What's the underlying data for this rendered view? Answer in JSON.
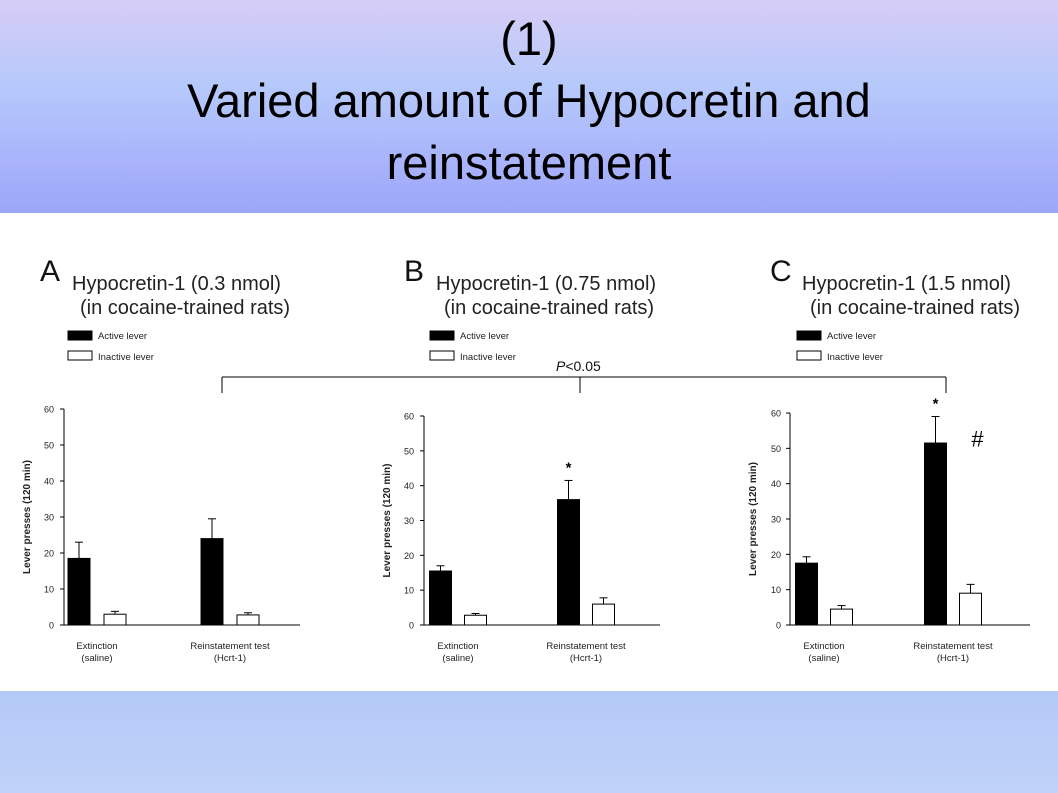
{
  "slide": {
    "title_line1": "(1)",
    "title_line2": "Varied amount of Hypocretin and",
    "title_line3": "reinstatement"
  },
  "legend": {
    "active": "Active lever",
    "inactive": "Inactive lever"
  },
  "comparison": {
    "label_prefix": "P",
    "label_rest": "<0.05"
  },
  "colors": {
    "active": "#000000",
    "inactive": "#ffffff",
    "background_band": "#a9b4fb",
    "figure_bg": "#ffffff"
  },
  "chart_data": [
    {
      "type": "bar",
      "panel_letter": "A",
      "title": "Hypocretin-1 (0.3 nmol)",
      "subtitle": "(in cocaine-trained rats)",
      "ylabel": "Lever presses (120 min)",
      "ylim": [
        0,
        60
      ],
      "yticks": [
        0,
        10,
        20,
        30,
        40,
        50,
        60
      ],
      "categories": [
        "Extinction\n(saline)",
        "Reinstatement test\n(Hcrt-1)"
      ],
      "series": [
        {
          "name": "Active lever",
          "values": [
            18.5,
            24
          ],
          "errors": [
            4.5,
            5.5
          ]
        },
        {
          "name": "Inactive lever",
          "values": [
            3,
            2.8
          ],
          "errors": [
            0.8,
            0.6
          ]
        }
      ],
      "annotations": [],
      "legend": "top-left"
    },
    {
      "type": "bar",
      "panel_letter": "B",
      "title": "Hypocretin-1 (0.75 nmol)",
      "subtitle": "(in cocaine-trained rats)",
      "ylabel": "Lever presses (120 min)",
      "ylim": [
        0,
        60
      ],
      "yticks": [
        0,
        10,
        20,
        30,
        40,
        50,
        60
      ],
      "categories": [
        "Extinction\n(saline)",
        "Reinstatement test\n(Hcrt-1)"
      ],
      "series": [
        {
          "name": "Active lever",
          "values": [
            15.5,
            36
          ],
          "errors": [
            1.5,
            5.5
          ]
        },
        {
          "name": "Inactive lever",
          "values": [
            2.8,
            6
          ],
          "errors": [
            0.5,
            1.8
          ]
        }
      ],
      "annotations": [
        {
          "text": "*",
          "category": 1,
          "series": 0
        }
      ],
      "legend": "top-left"
    },
    {
      "type": "bar",
      "panel_letter": "C",
      "title": "Hypocretin-1 (1.5 nmol)",
      "subtitle": "(in cocaine-trained rats)",
      "ylabel": "Lever presses (120 min)",
      "ylim": [
        0,
        60
      ],
      "yticks": [
        0,
        10,
        20,
        30,
        40,
        50,
        60
      ],
      "categories": [
        "Extinction\n(saline)",
        "Reinstatement test\n(Hcrt-1)"
      ],
      "series": [
        {
          "name": "Active lever",
          "values": [
            17.5,
            51.5
          ],
          "errors": [
            1.8,
            7.5
          ]
        },
        {
          "name": "Inactive lever",
          "values": [
            4.5,
            9
          ],
          "errors": [
            1,
            2.5
          ]
        }
      ],
      "annotations": [
        {
          "text": "*",
          "category": 1,
          "series": 0
        },
        {
          "text": "#",
          "category": 1,
          "series": 0
        }
      ],
      "legend": "top-left"
    }
  ]
}
